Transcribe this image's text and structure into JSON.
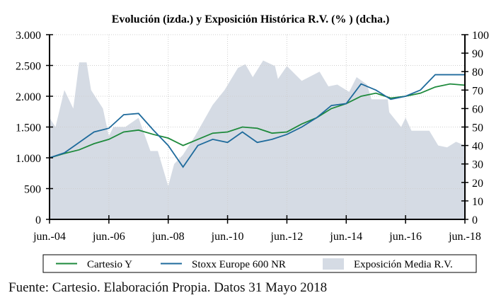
{
  "chart_data": {
    "type": "line",
    "title": "Evolución  (izda.)  y Exposición  Histórica R.V.  (% ) (dcha.)",
    "xlim": [
      2004.5,
      2018.5
    ],
    "x_ticks": [
      2004.5,
      2006.5,
      2008.5,
      2010.5,
      2012.5,
      2014.5,
      2016.5,
      2018.5
    ],
    "x_tick_labels": [
      "jun.-04",
      "jun.-06",
      "jun.-08",
      "jun.-10",
      "jun.-12",
      "jun.-14",
      "jun.-16",
      "jun.-18"
    ],
    "y_left": {
      "lim": [
        0,
        3000
      ],
      "ticks": [
        0,
        500,
        1000,
        1500,
        2000,
        2500,
        3000
      ],
      "tick_labels": [
        "0",
        "500",
        "1.000",
        "1.500",
        "2.000",
        "2.500",
        "3.000"
      ]
    },
    "y_right": {
      "lim": [
        0,
        100
      ],
      "ticks": [
        0,
        10,
        20,
        30,
        40,
        50,
        60,
        70,
        80,
        90,
        100
      ],
      "tick_labels": [
        "0",
        "10",
        "20",
        "30",
        "40",
        "50",
        "60",
        "70",
        "80",
        "90",
        "100"
      ]
    },
    "grid": true,
    "legend_position": "bottom",
    "series": [
      {
        "name": "Cartesio Y",
        "axis": "left",
        "type": "line",
        "color": "#1e8a3c",
        "x": [
          2004.5,
          2005,
          2005.5,
          2006,
          2006.5,
          2007,
          2007.5,
          2008,
          2008.5,
          2009,
          2009.5,
          2010,
          2010.5,
          2011,
          2011.5,
          2012,
          2012.5,
          2013,
          2013.5,
          2014,
          2014.5,
          2015,
          2015.5,
          2016,
          2016.5,
          2017,
          2017.5,
          2018,
          2018.5
        ],
        "values": [
          1000,
          1070,
          1130,
          1230,
          1300,
          1420,
          1450,
          1380,
          1320,
          1200,
          1300,
          1400,
          1420,
          1500,
          1480,
          1400,
          1420,
          1550,
          1650,
          1800,
          1880,
          2000,
          2050,
          1970,
          2000,
          2050,
          2150,
          2200,
          2180
        ]
      },
      {
        "name": "Stoxx Europe 600 NR",
        "axis": "left",
        "type": "line",
        "color": "#1f6b9c",
        "x": [
          2004.5,
          2005,
          2005.5,
          2006,
          2006.5,
          2007,
          2007.5,
          2008,
          2008.5,
          2009,
          2009.5,
          2010,
          2010.5,
          2011,
          2011.5,
          2012,
          2012.5,
          2013,
          2013.5,
          2014,
          2014.5,
          2015,
          2015.5,
          2016,
          2016.5,
          2017,
          2017.5,
          2018,
          2018.5
        ],
        "values": [
          1000,
          1080,
          1250,
          1420,
          1480,
          1700,
          1720,
          1450,
          1200,
          850,
          1200,
          1300,
          1250,
          1420,
          1250,
          1300,
          1380,
          1500,
          1650,
          1850,
          1880,
          2200,
          2100,
          1950,
          2000,
          2100,
          2350,
          2350,
          2350
        ]
      },
      {
        "name": "Exposición Media R.V.",
        "axis": "right",
        "type": "area",
        "color": "#d5dbe4",
        "x": [
          2004.5,
          2004.7,
          2005.0,
          2005.3,
          2005.5,
          2005.75,
          2005.9,
          2006.3,
          2006.5,
          2006.65,
          2007.05,
          2007.5,
          2007.9,
          2008.15,
          2008.5,
          2008.7,
          2009.0,
          2009.4,
          2010.0,
          2010.4,
          2010.85,
          2011.1,
          2011.35,
          2011.7,
          2012.1,
          2012.2,
          2012.5,
          2013.0,
          2013.6,
          2013.9,
          2014.2,
          2014.6,
          2014.85,
          2015.2,
          2015.35,
          2015.9,
          2015.95,
          2016.35,
          2016.5,
          2016.7,
          2017.3,
          2017.6,
          2017.9,
          2018.2,
          2018.5
        ],
        "values": [
          55,
          50,
          70,
          60,
          85,
          85,
          70,
          60,
          45,
          50,
          50,
          55,
          37,
          37,
          18,
          30,
          35,
          45,
          62,
          70,
          82,
          84,
          77,
          86,
          83,
          76,
          83,
          75,
          80,
          72,
          73,
          69,
          77,
          73,
          65,
          65,
          58,
          50,
          55,
          48,
          48,
          40,
          39,
          42,
          40
        ]
      }
    ]
  },
  "footer": "Fuente: Cartesio. Elaboración Propia. Datos 31 Mayo 2018"
}
